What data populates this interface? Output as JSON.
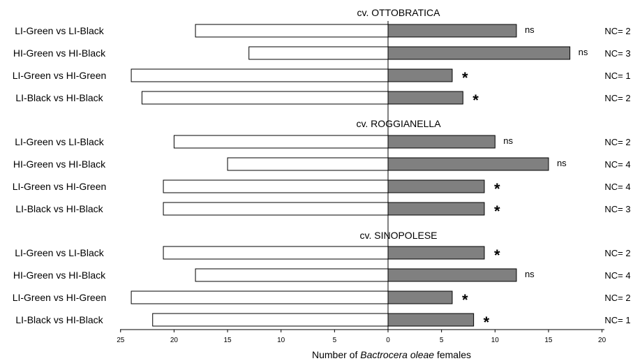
{
  "chart_data": {
    "type": "bar",
    "orientation": "horizontal-diverging",
    "xlabel_prefix": "Number of ",
    "xlabel_species": "Bactrocera oleae",
    "xlabel_suffix": " females",
    "xlim": [
      -25,
      20
    ],
    "xticks": [
      -25,
      -20,
      -15,
      -10,
      -5,
      0,
      5,
      10,
      15,
      20
    ],
    "xtick_labels": [
      "25",
      "20",
      "15",
      "10",
      "5",
      "0",
      "5",
      "10",
      "15",
      "20"
    ],
    "colors": {
      "left": "#ffffff",
      "right": "#808080",
      "edge": "#000000"
    },
    "groups": [
      {
        "title": "cv. OTTOBRATICA",
        "rows": [
          {
            "label": "LI-Green vs LI-Black",
            "left": 18,
            "right": 12,
            "sig": "ns",
            "nc": "NC= 2"
          },
          {
            "label": "HI-Green vs HI-Black",
            "left": 13,
            "right": 17,
            "sig": "ns",
            "nc": "NC= 3"
          },
          {
            "label": "LI-Green vs HI-Green",
            "left": 24,
            "right": 6,
            "sig": "*",
            "nc": "NC= 1"
          },
          {
            "label": "LI-Black vs HI-Black",
            "left": 23,
            "right": 7,
            "sig": "*",
            "nc": "NC= 2"
          }
        ]
      },
      {
        "title": "cv. ROGGIANELLA",
        "rows": [
          {
            "label": "LI-Green vs LI-Black",
            "left": 20,
            "right": 10,
            "sig": "ns",
            "nc": "NC= 2"
          },
          {
            "label": "HI-Green vs HI-Black",
            "left": 15,
            "right": 15,
            "sig": "ns",
            "nc": "NC= 4"
          },
          {
            "label": "LI-Green vs HI-Green",
            "left": 21,
            "right": 9,
            "sig": "*",
            "nc": "NC= 4"
          },
          {
            "label": "LI-Black vs HI-Black",
            "left": 21,
            "right": 9,
            "sig": "*",
            "nc": "NC= 3"
          }
        ]
      },
      {
        "title": "cv. SINOPOLESE",
        "rows": [
          {
            "label": "LI-Green vs LI-Black",
            "left": 21,
            "right": 9,
            "sig": "*",
            "nc": "NC= 2"
          },
          {
            "label": "HI-Green vs HI-Black",
            "left": 18,
            "right": 12,
            "sig": "ns",
            "nc": "NC= 4"
          },
          {
            "label": "LI-Green vs HI-Green",
            "left": 24,
            "right": 6,
            "sig": "*",
            "nc": "NC= 2"
          },
          {
            "label": "LI-Black vs HI-Black",
            "left": 22,
            "right": 8,
            "sig": "*",
            "nc": "NC= 1"
          }
        ]
      }
    ]
  }
}
